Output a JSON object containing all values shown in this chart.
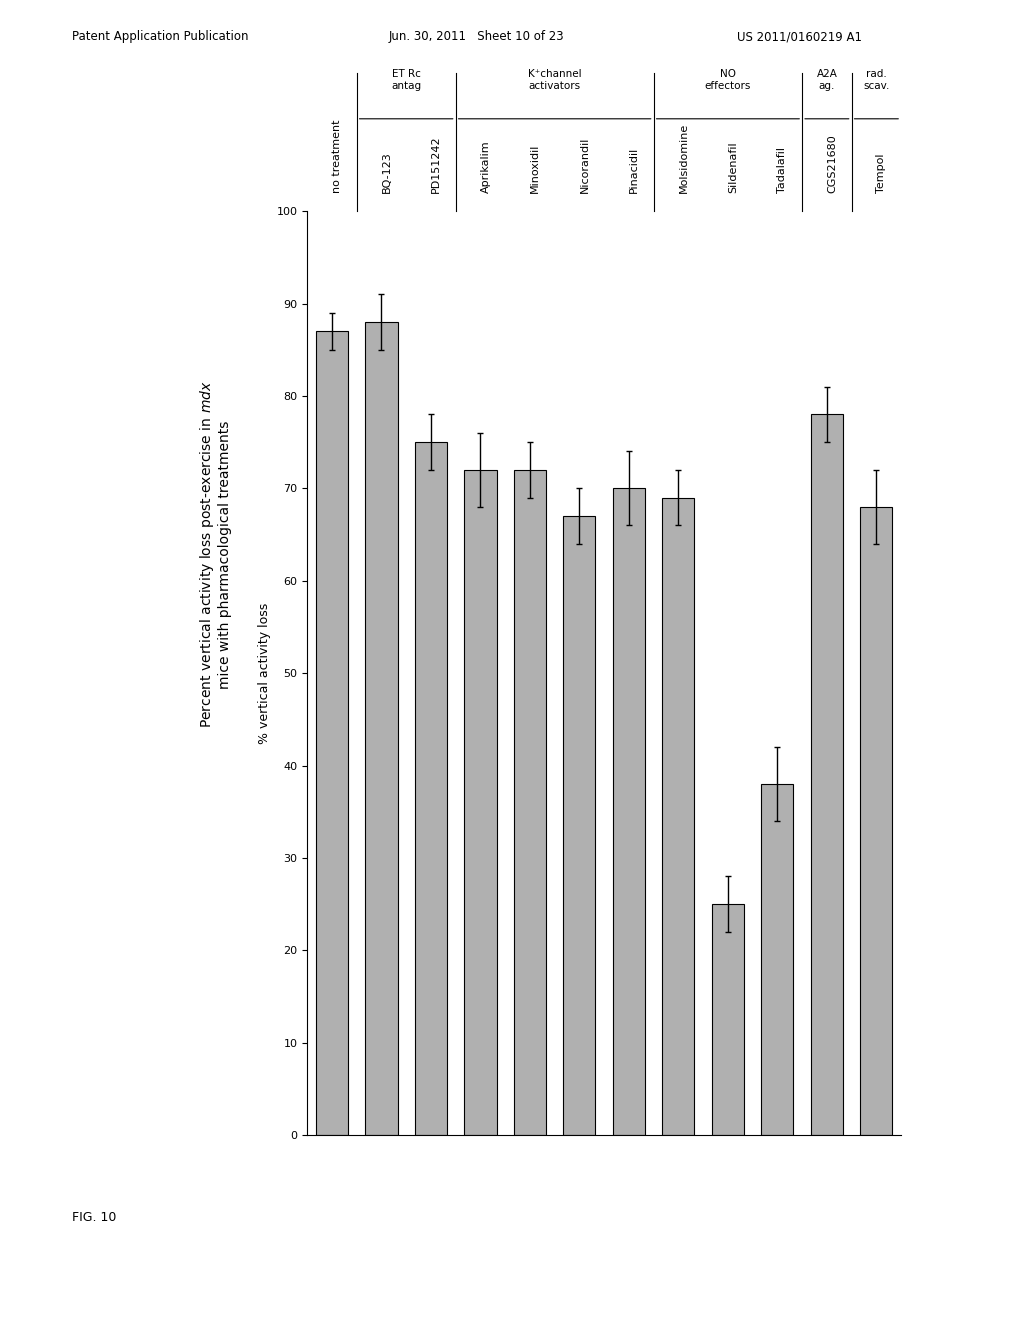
{
  "title_line1": "Percent vertical activity loss post-exercise in",
  "title_italic": "mdx",
  "title_line2": "mice with pharmacological treatments",
  "xlabel_rotated": "% vertical activity loss",
  "ylim": [
    0,
    100
  ],
  "yticks": [
    0,
    10,
    20,
    30,
    40,
    50,
    60,
    70,
    80,
    90,
    100
  ],
  "categories": [
    "no treatment",
    "BQ-123",
    "PD151242",
    "Aprikalim",
    "Minoxidil",
    "Nicorandil",
    "Pinacidil",
    "Molsidomine",
    "Sildenafil",
    "Tadalafil",
    "CGS21680",
    "Tempol"
  ],
  "values": [
    87,
    88,
    75,
    72,
    72,
    67,
    70,
    69,
    25,
    38,
    78,
    68
  ],
  "errors": [
    2,
    3,
    3,
    4,
    3,
    3,
    4,
    3,
    3,
    4,
    3,
    4
  ],
  "groups": [
    {
      "label": "ET Rc\nantag",
      "start": 1,
      "end": 2
    },
    {
      "label": "K⁺channel\nactivators",
      "start": 3,
      "end": 6
    },
    {
      "label": "NO\neffectors",
      "start": 7,
      "end": 9
    },
    {
      "label": "A2A\nag.",
      "start": 10,
      "end": 10
    },
    {
      "label": "rad.\nscav.",
      "start": 11,
      "end": 11
    }
  ],
  "bar_color": "#b0b0b0",
  "bar_edgecolor": "#000000",
  "background_color": "#ffffff",
  "fig_label": "FIG. 10",
  "header_left": "Patent Application Publication",
  "header_mid": "Jun. 30, 2011   Sheet 10 of 23",
  "header_right": "US 2011/0160219 A1"
}
